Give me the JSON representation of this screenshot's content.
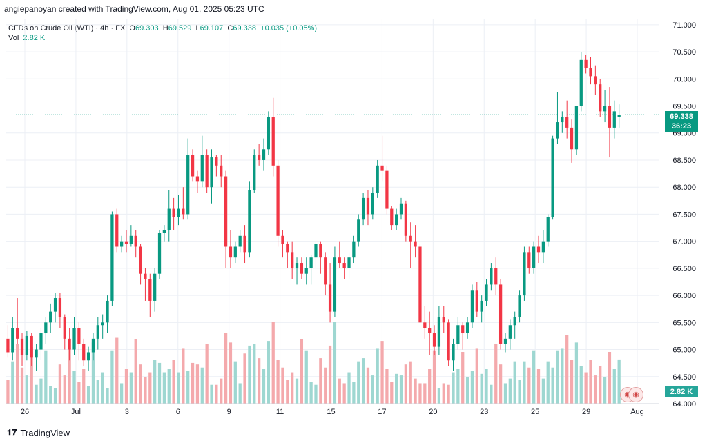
{
  "header": {
    "credit": "angiepanoyan created with TradingView.com, Aug 01, 2025 05:23 UTC"
  },
  "legend": {
    "symbol": "CFDs on Crude Oil (WTI) · 4h · FX",
    "o_label": "O",
    "o_value": "69.303",
    "h_label": "H",
    "h_value": "69.529",
    "l_label": "L",
    "l_value": "69.107",
    "c_label": "C",
    "c_value": "69.338",
    "change": "+0.035 (+0.05%)",
    "vol_label": "Vol",
    "vol_value": "2.82 K"
  },
  "price_tag": {
    "price": "69.338",
    "countdown": "36:23"
  },
  "vol_tag": "2.82 K",
  "footer": {
    "brand": "TradingView"
  },
  "colors": {
    "up": "#089981",
    "down": "#f23645",
    "vol_up": "#9ed7d1",
    "vol_down": "#f4a9ac",
    "grid": "#eceff5",
    "last_line": "#089981"
  },
  "chart_data": {
    "type": "candlestick",
    "title": "CFDs on Crude Oil (WTI) · 4h · FX",
    "ylim": [
      64.0,
      71.1
    ],
    "y_ticks": [
      "71.000",
      "70.500",
      "70.000",
      "69.500",
      "69.000",
      "68.500",
      "68.000",
      "67.500",
      "67.000",
      "66.500",
      "66.000",
      "65.500",
      "65.000",
      "64.500",
      "64.000"
    ],
    "x_ticks": [
      "26",
      "Jul",
      "3",
      "6",
      "9",
      "11",
      "15",
      "17",
      "20",
      "23",
      "25",
      "29",
      "Aug"
    ],
    "last_price": 69.338,
    "candles": [
      [
        65.2,
        65.45,
        64.85,
        64.95,
        1.5
      ],
      [
        64.95,
        65.6,
        64.8,
        65.4,
        2.7
      ],
      [
        65.4,
        65.95,
        65.1,
        65.2,
        3.8
      ],
      [
        65.2,
        65.3,
        64.7,
        64.9,
        2.3
      ],
      [
        64.9,
        65.35,
        64.8,
        65.25,
        1.8
      ],
      [
        65.25,
        65.3,
        64.7,
        64.85,
        3.6
      ],
      [
        64.85,
        65.1,
        64.6,
        65.0,
        1.2
      ],
      [
        65.0,
        65.4,
        64.8,
        65.3,
        1.6
      ],
      [
        65.3,
        65.6,
        65.1,
        65.5,
        3.4
      ],
      [
        65.5,
        65.85,
        65.3,
        65.7,
        1.1
      ],
      [
        65.7,
        66.05,
        65.5,
        65.95,
        1.0
      ],
      [
        65.95,
        66.05,
        65.4,
        65.6,
        2.5
      ],
      [
        65.6,
        65.65,
        65.0,
        65.2,
        1.8
      ],
      [
        65.2,
        65.4,
        64.8,
        65.0,
        3.5
      ],
      [
        65.0,
        65.6,
        64.9,
        65.4,
        2.1
      ],
      [
        65.4,
        65.5,
        64.8,
        65.1,
        1.4
      ],
      [
        65.1,
        65.2,
        64.7,
        64.8,
        2.2
      ],
      [
        64.8,
        65.05,
        64.6,
        64.95,
        1.1
      ],
      [
        64.95,
        65.3,
        64.8,
        65.2,
        3.9
      ],
      [
        65.2,
        65.6,
        65.0,
        65.45,
        1.5
      ],
      [
        65.45,
        65.65,
        65.2,
        65.5,
        2.0
      ],
      [
        65.5,
        66.0,
        65.3,
        65.9,
        1.0
      ],
      [
        65.9,
        67.55,
        65.8,
        67.5,
        3.4
      ],
      [
        67.5,
        67.6,
        66.8,
        66.9,
        4.2
      ],
      [
        66.9,
        67.1,
        66.8,
        67.0,
        1.3
      ],
      [
        67.0,
        67.2,
        66.8,
        66.95,
        2.2
      ],
      [
        66.95,
        67.3,
        66.9,
        67.1,
        2.0
      ],
      [
        67.1,
        67.2,
        66.7,
        66.9,
        4.1
      ],
      [
        66.9,
        66.95,
        66.2,
        66.4,
        2.5
      ],
      [
        66.4,
        66.5,
        65.9,
        66.3,
        1.7
      ],
      [
        66.3,
        66.4,
        65.6,
        65.9,
        2.0
      ],
      [
        65.9,
        66.5,
        65.7,
        66.4,
        2.8
      ],
      [
        66.4,
        67.2,
        66.3,
        67.15,
        2.6
      ],
      [
        67.15,
        67.3,
        67.0,
        67.2,
        2.0
      ],
      [
        67.2,
        67.95,
        67.0,
        67.6,
        2.2
      ],
      [
        67.6,
        67.8,
        67.2,
        67.45,
        2.8
      ],
      [
        67.45,
        67.85,
        67.3,
        67.6,
        2.0
      ],
      [
        67.6,
        68.0,
        67.4,
        67.5,
        3.5
      ],
      [
        67.5,
        68.9,
        67.4,
        68.6,
        2.1
      ],
      [
        68.6,
        68.7,
        68.1,
        68.2,
        2.6
      ],
      [
        68.2,
        68.3,
        67.9,
        68.1,
        2.5
      ],
      [
        68.1,
        68.95,
        68.0,
        68.6,
        2.3
      ],
      [
        68.6,
        68.7,
        67.9,
        68.0,
        3.8
      ],
      [
        68.0,
        68.7,
        67.7,
        68.55,
        1.2
      ],
      [
        68.55,
        68.6,
        68.2,
        68.4,
        1.2
      ],
      [
        68.4,
        68.6,
        68.0,
        68.2,
        1.6
      ],
      [
        68.2,
        68.3,
        66.5,
        66.9,
        4.5
      ],
      [
        66.9,
        67.2,
        66.5,
        66.7,
        3.9
      ],
      [
        66.7,
        67.0,
        66.6,
        66.9,
        2.7
      ],
      [
        66.9,
        67.2,
        66.8,
        67.1,
        1.3
      ],
      [
        67.1,
        67.3,
        66.6,
        66.8,
        3.2
      ],
      [
        66.8,
        68.1,
        66.7,
        67.95,
        3.7
      ],
      [
        67.95,
        68.7,
        67.9,
        68.6,
        3.8
      ],
      [
        68.6,
        68.8,
        68.4,
        68.5,
        2.9
      ],
      [
        68.5,
        68.9,
        68.3,
        68.7,
        2.2
      ],
      [
        68.7,
        69.4,
        68.6,
        69.3,
        4.0
      ],
      [
        69.3,
        69.65,
        68.2,
        68.4,
        5.2
      ],
      [
        68.4,
        68.5,
        66.9,
        67.1,
        2.8
      ],
      [
        67.1,
        67.2,
        66.7,
        66.95,
        2.3
      ],
      [
        66.95,
        67.0,
        66.5,
        66.8,
        1.5
      ],
      [
        66.8,
        67.0,
        66.3,
        66.5,
        2.0
      ],
      [
        66.5,
        66.7,
        66.2,
        66.6,
        1.6
      ],
      [
        66.6,
        66.7,
        66.3,
        66.4,
        4.1
      ],
      [
        66.4,
        66.7,
        66.2,
        66.5,
        3.4
      ],
      [
        66.5,
        66.75,
        66.2,
        66.7,
        1.4
      ],
      [
        66.7,
        67.0,
        66.5,
        66.95,
        1.2
      ],
      [
        66.95,
        67.0,
        66.4,
        66.7,
        2.9
      ],
      [
        66.7,
        66.8,
        66.0,
        66.2,
        2.3
      ],
      [
        66.2,
        66.6,
        65.5,
        65.7,
        3.7
      ],
      [
        65.7,
        66.9,
        65.6,
        66.7,
        5.2
      ],
      [
        66.7,
        67.0,
        66.5,
        66.6,
        1.6
      ],
      [
        66.6,
        66.7,
        66.3,
        66.5,
        1.3
      ],
      [
        66.5,
        66.8,
        66.3,
        66.7,
        2.0
      ],
      [
        66.7,
        67.1,
        66.6,
        67.0,
        1.4
      ],
      [
        67.0,
        67.5,
        66.9,
        67.4,
        2.7
      ],
      [
        67.4,
        67.9,
        67.3,
        67.8,
        2.9
      ],
      [
        67.8,
        67.95,
        67.3,
        67.5,
        2.3
      ],
      [
        67.5,
        68.0,
        67.4,
        67.9,
        1.8
      ],
      [
        67.9,
        68.5,
        67.8,
        68.4,
        3.5
      ],
      [
        68.4,
        68.95,
        68.1,
        68.3,
        4.0
      ],
      [
        68.3,
        68.4,
        67.5,
        67.6,
        2.2
      ],
      [
        67.6,
        67.65,
        67.2,
        67.3,
        1.4
      ],
      [
        67.3,
        67.6,
        67.2,
        67.5,
        1.9
      ],
      [
        67.5,
        67.8,
        67.4,
        67.7,
        1.8
      ],
      [
        67.7,
        67.75,
        67.0,
        67.1,
        2.5
      ],
      [
        67.1,
        67.35,
        66.5,
        67.0,
        2.7
      ],
      [
        67.0,
        67.3,
        66.7,
        66.9,
        1.6
      ],
      [
        66.9,
        66.95,
        65.5,
        65.5,
        1.3
      ],
      [
        65.5,
        65.8,
        65.2,
        65.4,
        1.3
      ],
      [
        65.4,
        65.7,
        64.9,
        65.3,
        2.2
      ],
      [
        65.3,
        65.45,
        64.9,
        65.05,
        3.4
      ],
      [
        65.05,
        65.8,
        64.9,
        65.6,
        1.0
      ],
      [
        65.6,
        65.8,
        65.3,
        65.5,
        1.3
      ],
      [
        65.5,
        65.55,
        64.7,
        64.8,
        1.2
      ],
      [
        64.8,
        65.2,
        64.6,
        65.1,
        2.0
      ],
      [
        65.1,
        65.6,
        65.0,
        65.45,
        2.2
      ],
      [
        65.45,
        65.5,
        65.0,
        65.3,
        3.3
      ],
      [
        65.3,
        65.6,
        65.2,
        65.5,
        1.7
      ],
      [
        65.5,
        66.2,
        65.4,
        66.1,
        2.1
      ],
      [
        66.1,
        66.25,
        65.6,
        65.7,
        3.5
      ],
      [
        65.7,
        66.0,
        65.5,
        65.9,
        1.9
      ],
      [
        65.9,
        66.3,
        65.8,
        66.2,
        2.2
      ],
      [
        66.2,
        66.6,
        66.1,
        66.5,
        1.2
      ],
      [
        66.5,
        66.7,
        66.0,
        66.2,
        3.8
      ],
      [
        66.2,
        66.3,
        65.0,
        65.1,
        2.5
      ],
      [
        65.1,
        65.3,
        64.95,
        65.2,
        1.3
      ],
      [
        65.2,
        65.55,
        65.0,
        65.45,
        1.6
      ],
      [
        65.45,
        65.7,
        65.2,
        65.6,
        2.7
      ],
      [
        65.6,
        66.1,
        65.5,
        66.0,
        1.5
      ],
      [
        66.0,
        66.9,
        65.9,
        66.8,
        2.7
      ],
      [
        66.8,
        66.9,
        66.4,
        66.5,
        2.3
      ],
      [
        66.5,
        67.0,
        66.4,
        66.9,
        3.4
      ],
      [
        66.9,
        67.1,
        66.6,
        66.8,
        2.2
      ],
      [
        66.8,
        67.2,
        66.6,
        67.0,
        1.6
      ],
      [
        67.0,
        67.5,
        66.9,
        67.45,
        2.7
      ],
      [
        67.45,
        68.95,
        67.4,
        68.9,
        2.3
      ],
      [
        68.9,
        69.75,
        68.8,
        69.2,
        3.4
      ],
      [
        69.2,
        69.4,
        69.0,
        69.3,
        3.5
      ],
      [
        69.3,
        69.6,
        68.9,
        69.1,
        4.4
      ],
      [
        69.1,
        69.25,
        68.45,
        68.7,
        2.8
      ],
      [
        68.7,
        69.5,
        68.6,
        69.5,
        3.9
      ],
      [
        69.5,
        70.5,
        69.4,
        70.35,
        2.4
      ],
      [
        70.35,
        70.45,
        70.1,
        70.2,
        2.0
      ],
      [
        70.2,
        70.4,
        69.9,
        70.05,
        2.8
      ],
      [
        70.05,
        70.25,
        69.7,
        69.9,
        1.8
      ],
      [
        69.9,
        70.0,
        69.3,
        69.4,
        2.4
      ],
      [
        69.4,
        69.8,
        69.2,
        69.5,
        1.7
      ],
      [
        69.5,
        69.85,
        68.55,
        69.1,
        3.3
      ],
      [
        69.1,
        69.6,
        68.9,
        69.4,
        2.2
      ],
      [
        69.3,
        69.53,
        69.1,
        69.34,
        2.82
      ]
    ]
  }
}
